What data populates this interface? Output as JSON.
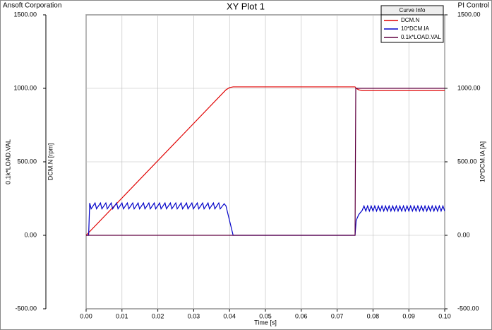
{
  "chart_data": {
    "type": "line",
    "title": "XY Plot 1",
    "left_note": "Ansoft Corporation",
    "right_note": "PI Control",
    "xlabel": "Time [s]",
    "ylabel": "DCM.N [rpm]",
    "ylabel_outer": "0.1k*LOAD.VAL",
    "y2label": "10*DCM.IA [A]",
    "legend_title": "Curve Info",
    "legend": "upper right",
    "grid": true,
    "xlim": [
      0,
      0.1
    ],
    "xticks": [
      {
        "value": 0,
        "label": "0.00"
      },
      {
        "value": 0.01,
        "label": "0.01"
      },
      {
        "value": 0.02,
        "label": "0.02"
      },
      {
        "value": 0.03,
        "label": "0.03"
      },
      {
        "value": 0.04,
        "label": "0.04"
      },
      {
        "value": 0.05,
        "label": "0.05"
      },
      {
        "value": 0.06,
        "label": "0.06"
      },
      {
        "value": 0.07,
        "label": "0.07"
      },
      {
        "value": 0.08,
        "label": "0.08"
      },
      {
        "value": 0.09,
        "label": "0.09"
      },
      {
        "value": 0.1,
        "label": "0.10"
      }
    ],
    "ylim": [
      -500,
      1500
    ],
    "yticks": [
      {
        "value": -500,
        "label": "-500.00"
      },
      {
        "value": 0,
        "label": "0.00"
      },
      {
        "value": 500,
        "label": "500.00"
      },
      {
        "value": 1000,
        "label": "1000.00"
      },
      {
        "value": 1500,
        "label": "1500.00"
      }
    ],
    "y2lim": [
      -500,
      1500
    ],
    "y2ticks": [
      {
        "value": -500,
        "label": "-500.00"
      },
      {
        "value": 0,
        "label": "0.00"
      },
      {
        "value": 500,
        "label": "500.00"
      },
      {
        "value": 1000,
        "label": "1000.00"
      },
      {
        "value": 1500,
        "label": "1500.00"
      }
    ],
    "series": [
      {
        "name": "DCM.N",
        "color": "#e00000",
        "x": [
          0,
          0.039,
          0.04,
          0.041,
          0.075,
          0.0753,
          0.076,
          0.077,
          0.1
        ],
        "values": [
          0,
          990,
          1005,
          1010,
          1010,
          1000,
          990,
          985,
          985
        ]
      },
      {
        "name": "10*DCM.IA",
        "color": "#0000c8",
        "axis": "y2",
        "x": [
          0,
          0.0007,
          0.001,
          0.0014,
          0.0025,
          0.0029,
          0.004,
          0.0044,
          0.0055,
          0.0059,
          0.007,
          0.0074,
          0.0085,
          0.0089,
          0.01,
          0.0104,
          0.0115,
          0.0119,
          0.013,
          0.0134,
          0.0145,
          0.0149,
          0.016,
          0.0164,
          0.0175,
          0.0179,
          0.019,
          0.0194,
          0.0205,
          0.0209,
          0.022,
          0.0224,
          0.0235,
          0.0239,
          0.025,
          0.0254,
          0.0265,
          0.0269,
          0.028,
          0.0284,
          0.0295,
          0.0299,
          0.031,
          0.0314,
          0.0325,
          0.0329,
          0.034,
          0.0344,
          0.0355,
          0.0359,
          0.037,
          0.0374,
          0.0385,
          0.039,
          0.041,
          0.075,
          0.0753,
          0.076,
          0.077,
          0.0775,
          0.078,
          0.0785,
          0.079,
          0.0795,
          0.08,
          0.0805,
          0.081,
          0.0815,
          0.082,
          0.0825,
          0.083,
          0.0835,
          0.084,
          0.0845,
          0.085,
          0.0855,
          0.086,
          0.0865,
          0.087,
          0.0875,
          0.088,
          0.0885,
          0.089,
          0.0895,
          0.09,
          0.0905,
          0.091,
          0.0915,
          0.092,
          0.0925,
          0.093,
          0.0935,
          0.094,
          0.0945,
          0.095,
          0.0955,
          0.096,
          0.0965,
          0.097,
          0.0975,
          0.098,
          0.0985,
          0.099,
          0.0995,
          0.1
        ],
        "values": [
          0,
          0,
          220,
          180,
          220,
          180,
          220,
          180,
          220,
          180,
          220,
          180,
          220,
          180,
          220,
          180,
          220,
          180,
          220,
          180,
          220,
          180,
          220,
          180,
          220,
          180,
          220,
          180,
          220,
          180,
          220,
          180,
          220,
          180,
          220,
          180,
          220,
          180,
          220,
          180,
          220,
          180,
          220,
          180,
          220,
          180,
          220,
          180,
          220,
          180,
          220,
          180,
          215,
          200,
          0,
          0,
          100,
          140,
          170,
          200,
          165,
          200,
          165,
          200,
          165,
          200,
          165,
          200,
          165,
          200,
          165,
          200,
          165,
          200,
          165,
          200,
          165,
          200,
          165,
          200,
          165,
          200,
          165,
          200,
          165,
          200,
          165,
          200,
          165,
          200,
          165,
          200,
          165,
          200,
          165,
          200,
          165,
          200,
          165,
          200,
          165,
          200,
          165,
          200,
          165
        ]
      },
      {
        "name": "0.1k*LOAD.VAL",
        "color": "#600040",
        "x": [
          0,
          0.075,
          0.0752,
          0.1
        ],
        "values": [
          0,
          0,
          1000,
          1000
        ]
      }
    ]
  }
}
